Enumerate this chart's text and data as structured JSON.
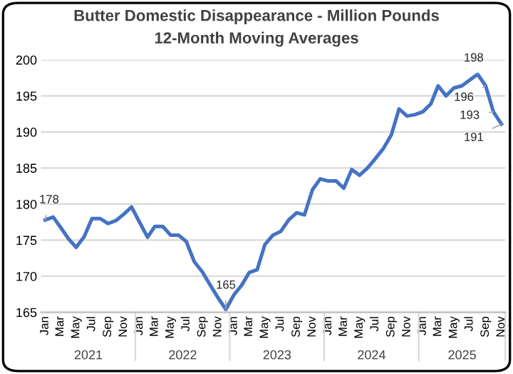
{
  "chart_data": {
    "type": "line",
    "title": "Butter Domestic Disappearance - Million Pounds",
    "subtitle": "12-Month Moving Averages",
    "x": [
      "2021-01",
      "2021-02",
      "2021-03",
      "2021-04",
      "2021-05",
      "2021-06",
      "2021-07",
      "2021-08",
      "2021-09",
      "2021-10",
      "2021-11",
      "2021-12",
      "2022-01",
      "2022-02",
      "2022-03",
      "2022-04",
      "2022-05",
      "2022-06",
      "2022-07",
      "2022-08",
      "2022-09",
      "2022-10",
      "2022-11",
      "2022-12",
      "2023-01",
      "2023-02",
      "2023-03",
      "2023-04",
      "2023-05",
      "2023-06",
      "2023-07",
      "2023-08",
      "2023-09",
      "2023-10",
      "2023-11",
      "2023-12",
      "2024-01",
      "2024-02",
      "2024-03",
      "2024-04",
      "2024-05",
      "2024-06",
      "2024-07",
      "2024-08",
      "2024-09",
      "2024-10",
      "2024-11",
      "2024-12",
      "2025-01",
      "2025-02",
      "2025-03",
      "2025-04",
      "2025-05",
      "2025-06",
      "2025-07",
      "2025-08",
      "2025-09",
      "2025-10",
      "2025-11"
    ],
    "series": [
      {
        "color": "#4472c4",
        "values": [
          177.8,
          178.2,
          176.8,
          175.2,
          174.0,
          175.5,
          178.0,
          178.0,
          177.3,
          177.7,
          178.6,
          179.6,
          177.5,
          175.4,
          176.9,
          176.9,
          175.7,
          175.7,
          174.8,
          172.0,
          170.6,
          168.8,
          167.0,
          165.4,
          167.4,
          168.8,
          170.5,
          170.9,
          174.4,
          175.7,
          176.2,
          177.8,
          178.8,
          178.5,
          182.0,
          183.5,
          183.2,
          183.2,
          182.2,
          184.8,
          184.0,
          185.0,
          186.3,
          187.7,
          189.6,
          193.2,
          192.2,
          192.4,
          192.8,
          193.9,
          196.4,
          195.0,
          196.1,
          196.4,
          197.2,
          198.0,
          196.4,
          192.8,
          191.1
        ]
      }
    ],
    "xlim": [
      "2020-12-16",
      "2025-11-16"
    ],
    "xticks": [
      {
        "value": "2021-01",
        "label": "Jan"
      },
      {
        "value": "2021-03",
        "label": "Mar"
      },
      {
        "value": "2021-05",
        "label": "May"
      },
      {
        "value": "2021-07",
        "label": "Jul"
      },
      {
        "value": "2021-09",
        "label": "Sep"
      },
      {
        "value": "2021-11",
        "label": "Nov"
      },
      {
        "value": "2022-01",
        "label": "Jan"
      },
      {
        "value": "2022-03",
        "label": "Mar"
      },
      {
        "value": "2022-05",
        "label": "May"
      },
      {
        "value": "2022-07",
        "label": "Jul"
      },
      {
        "value": "2022-09",
        "label": "Sep"
      },
      {
        "value": "2022-11",
        "label": "Nov"
      },
      {
        "value": "2023-01",
        "label": "Jan"
      },
      {
        "value": "2023-03",
        "label": "Mar"
      },
      {
        "value": "2023-05",
        "label": "May"
      },
      {
        "value": "2023-07",
        "label": "Jul"
      },
      {
        "value": "2023-09",
        "label": "Sep"
      },
      {
        "value": "2023-11",
        "label": "Nov"
      },
      {
        "value": "2024-01",
        "label": "Jan"
      },
      {
        "value": "2024-03",
        "label": "Mar"
      },
      {
        "value": "2024-05",
        "label": "May"
      },
      {
        "value": "2024-07",
        "label": "Jul"
      },
      {
        "value": "2024-09",
        "label": "Sep"
      },
      {
        "value": "2024-11",
        "label": "Nov"
      },
      {
        "value": "2025-01",
        "label": "Jan"
      },
      {
        "value": "2025-03",
        "label": "Mar"
      },
      {
        "value": "2025-05",
        "label": "May"
      },
      {
        "value": "2025-07",
        "label": "Jul"
      },
      {
        "value": "2025-09",
        "label": "Sep"
      },
      {
        "value": "2025-11",
        "label": "Nov"
      }
    ],
    "ylim": [
      165,
      200
    ],
    "yticks": [
      165,
      170,
      175,
      180,
      185,
      190,
      195,
      200
    ],
    "grid": "y",
    "marker": "none",
    "line_style": "solid",
    "annotations": [
      {
        "text": "178",
        "x": "2021-01",
        "y": 177.8
      },
      {
        "text": "165",
        "x": "2022-12",
        "y": 165.4
      },
      {
        "text": "198",
        "x": "2025-08",
        "y": 198.0
      },
      {
        "text": "196",
        "x": "2025-09",
        "y": 196.4
      },
      {
        "text": "193",
        "x": "2025-10",
        "y": 192.8
      },
      {
        "text": "191",
        "x": "2025-11",
        "y": 191.1
      },
      "2021",
      "2022",
      "2023",
      "2024",
      "2025"
    ]
  }
}
